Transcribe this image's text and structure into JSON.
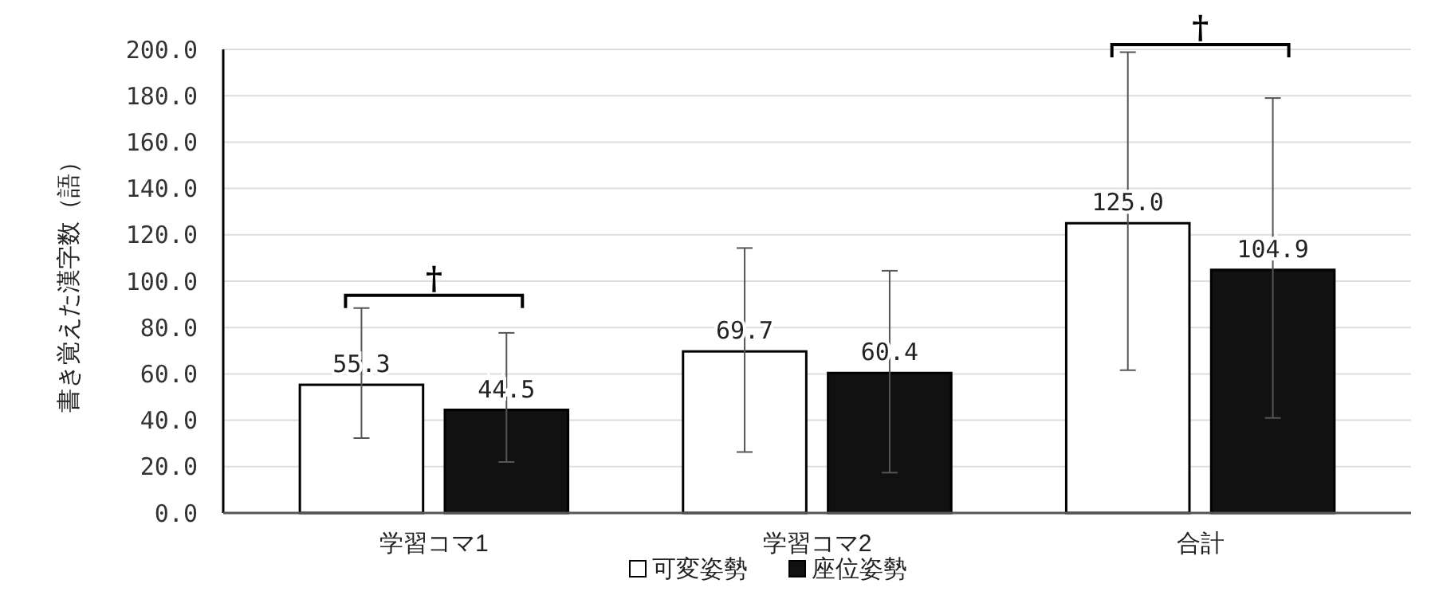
{
  "chart_data": {
    "type": "bar",
    "ylabel": "書き覚えた漢字数（語）",
    "categories": [
      "学習コマ1",
      "学習コマ2",
      "合計"
    ],
    "series": [
      {
        "name": "可変姿勢",
        "color": "#ffffff",
        "values": [
          55.3,
          69.7,
          125.0
        ],
        "value_labels": [
          "55.3",
          "69.7",
          "125.0"
        ],
        "errors": [
          [
            32.3,
            88.4
          ],
          [
            26.3,
            114.3
          ],
          [
            61.6,
            198.8
          ]
        ]
      },
      {
        "name": "座位姿勢",
        "color": "#111111",
        "values": [
          44.5,
          60.4,
          104.9
        ],
        "value_labels": [
          "44.5",
          "60.4",
          "104.9"
        ],
        "errors": [
          [
            22.0,
            77.7
          ],
          [
            17.4,
            104.5
          ],
          [
            41.0,
            179.0
          ]
        ]
      }
    ],
    "ylim": [
      0,
      200
    ],
    "yticks": [
      {
        "value": 0,
        "label": "0.0"
      },
      {
        "value": 20,
        "label": "20.0"
      },
      {
        "value": 40,
        "label": "40.0"
      },
      {
        "value": 60,
        "label": "60.0"
      },
      {
        "value": 80,
        "label": "80.0"
      },
      {
        "value": 100,
        "label": "100.0"
      },
      {
        "value": 120,
        "label": "120.0"
      },
      {
        "value": 140,
        "label": "140.0"
      },
      {
        "value": 160,
        "label": "160.0"
      },
      {
        "value": 180,
        "label": "180.0"
      },
      {
        "value": 200,
        "label": "200.0"
      }
    ],
    "grid": "y",
    "legend": "bottom",
    "annotations": [
      "†",
      "†"
    ]
  }
}
